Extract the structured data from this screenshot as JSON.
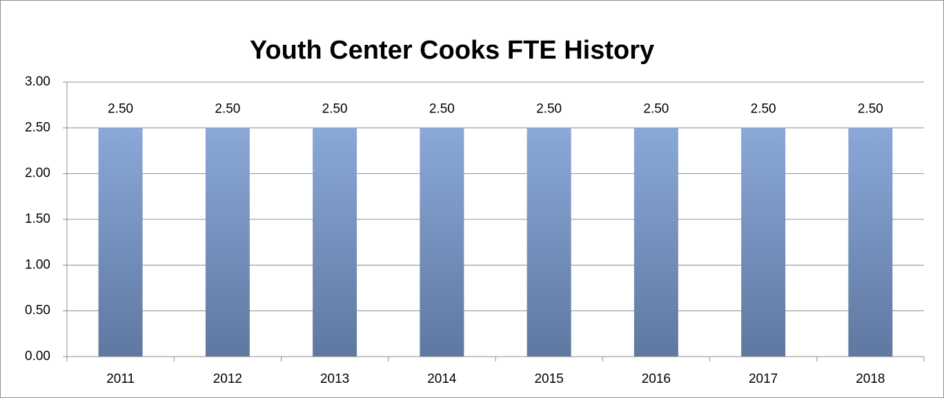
{
  "chart_data": {
    "type": "bar",
    "title": "Youth Center Cooks FTE History",
    "categories": [
      "2011",
      "2012",
      "2013",
      "2014",
      "2015",
      "2016",
      "2017",
      "2018"
    ],
    "values": [
      2.5,
      2.5,
      2.5,
      2.5,
      2.5,
      2.5,
      2.5,
      2.5
    ],
    "value_labels": [
      "2.50",
      "2.50",
      "2.50",
      "2.50",
      "2.50",
      "2.50",
      "2.50",
      "2.50"
    ],
    "color": "#8aa8d8",
    "ylim": [
      0,
      3
    ],
    "yticks": [
      {
        "value": 0,
        "label": "0.00"
      },
      {
        "value": 0.5,
        "label": "0.50"
      },
      {
        "value": 1,
        "label": "1.00"
      },
      {
        "value": 1.5,
        "label": "1.50"
      },
      {
        "value": 2,
        "label": "2.00"
      },
      {
        "value": 2.5,
        "label": "2.50"
      },
      {
        "value": 3,
        "label": "3.00"
      }
    ],
    "grid": true
  }
}
